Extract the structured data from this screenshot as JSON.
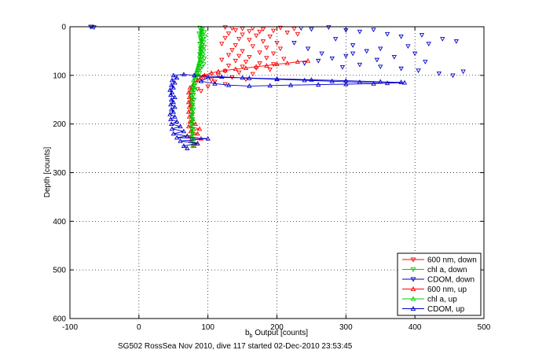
{
  "chart_data": {
    "type": "scatter",
    "xlabel": {
      "main": "b",
      "sub": "b",
      "rest": " Output [counts]"
    },
    "ylabel": "Depth [counts]",
    "footer": "SG502 RossSea Nov 2010, dive 117 started 02-Dec-2010 23:53:45",
    "xlim": [
      -100,
      500
    ],
    "ylim": [
      0,
      600
    ],
    "y_reversed": true,
    "grid": true,
    "legend_position": "bottom-right",
    "xticks": [
      "-100",
      "0",
      "100",
      "200",
      "300",
      "400",
      "500"
    ],
    "yticks": [
      "0",
      "100",
      "200",
      "300",
      "400",
      "500",
      "600"
    ],
    "series": [
      {
        "name": "600 nm, down",
        "color": "#ff0000",
        "marker": "triangle-down",
        "line": false,
        "points": [
          [
            125,
            1
          ],
          [
            135,
            3
          ],
          [
            150,
            4
          ],
          [
            165,
            3
          ],
          [
            180,
            5
          ],
          [
            205,
            2
          ],
          [
            225,
            4
          ],
          [
            140,
            7
          ],
          [
            160,
            9
          ],
          [
            175,
            10
          ],
          [
            195,
            8
          ],
          [
            215,
            12
          ],
          [
            130,
            14
          ],
          [
            150,
            16
          ],
          [
            170,
            18
          ],
          [
            190,
            20
          ],
          [
            230,
            15
          ],
          [
            125,
            23
          ],
          [
            145,
            25
          ],
          [
            160,
            27
          ],
          [
            180,
            30
          ],
          [
            200,
            33
          ],
          [
            120,
            35
          ],
          [
            140,
            38
          ],
          [
            165,
            40
          ],
          [
            185,
            43
          ],
          [
            205,
            45
          ],
          [
            135,
            48
          ],
          [
            150,
            50
          ],
          [
            175,
            53
          ],
          [
            195,
            55
          ],
          [
            130,
            58
          ],
          [
            145,
            60
          ],
          [
            160,
            62
          ],
          [
            185,
            64
          ],
          [
            210,
            66
          ],
          [
            120,
            68
          ],
          [
            140,
            70
          ],
          [
            155,
            72
          ],
          [
            175,
            75
          ],
          [
            195,
            77
          ],
          [
            130,
            80
          ],
          [
            150,
            82
          ],
          [
            170,
            85
          ],
          [
            190,
            88
          ],
          [
            125,
            91
          ],
          [
            145,
            94
          ],
          [
            165,
            97
          ],
          [
            115,
            100
          ],
          [
            135,
            104
          ],
          [
            155,
            108
          ],
          [
            110,
            113
          ],
          [
            125,
            118
          ],
          [
            100,
            123
          ],
          [
            85,
            128
          ],
          [
            90,
            132
          ],
          [
            95,
            102
          ],
          [
            105,
            110
          ]
        ]
      },
      {
        "name": "chl a, down",
        "color": "#00cc00",
        "marker": "triangle-down",
        "line": false,
        "points": [
          [
            88,
            2
          ],
          [
            92,
            5
          ],
          [
            90,
            8
          ],
          [
            95,
            11
          ],
          [
            87,
            14
          ],
          [
            91,
            17
          ],
          [
            96,
            20
          ],
          [
            89,
            23
          ],
          [
            93,
            26
          ],
          [
            90,
            29
          ],
          [
            94,
            32
          ],
          [
            88,
            35
          ],
          [
            92,
            38
          ],
          [
            95,
            41
          ],
          [
            89,
            44
          ],
          [
            91,
            47
          ],
          [
            94,
            50
          ],
          [
            90,
            53
          ],
          [
            88,
            56
          ],
          [
            93,
            59
          ],
          [
            91,
            62
          ],
          [
            95,
            65
          ],
          [
            89,
            68
          ],
          [
            92,
            71
          ],
          [
            90,
            74
          ],
          [
            94,
            77
          ],
          [
            87,
            80
          ],
          [
            91,
            83
          ],
          [
            89,
            86
          ],
          [
            86,
            90
          ],
          [
            88,
            95
          ],
          [
            84,
            100
          ],
          [
            86,
            105
          ],
          [
            82,
            110
          ],
          [
            83,
            115
          ],
          [
            80,
            122
          ],
          [
            81,
            130
          ],
          [
            79,
            140
          ],
          [
            80,
            150
          ],
          [
            78,
            160
          ],
          [
            79,
            170
          ],
          [
            77,
            180
          ],
          [
            78,
            190
          ],
          [
            76,
            200
          ],
          [
            77,
            210
          ],
          [
            78,
            220
          ],
          [
            76,
            230
          ],
          [
            79,
            240
          ],
          [
            78,
            245
          ]
        ]
      },
      {
        "name": "CDOM, down",
        "color": "#0000cc",
        "marker": "triangle-down",
        "line": false,
        "points": [
          [
            -70,
            0
          ],
          [
            -68,
            0
          ],
          [
            -65,
            1
          ],
          [
            235,
            3
          ],
          [
            250,
            5
          ],
          [
            275,
            1
          ],
          [
            300,
            7
          ],
          [
            320,
            10
          ],
          [
            340,
            6
          ],
          [
            360,
            15
          ],
          [
            380,
            20
          ],
          [
            410,
            17
          ],
          [
            440,
            25
          ],
          [
            460,
            30
          ],
          [
            420,
            35
          ],
          [
            390,
            40
          ],
          [
            350,
            45
          ],
          [
            330,
            50
          ],
          [
            310,
            55
          ],
          [
            300,
            60
          ],
          [
            280,
            65
          ],
          [
            260,
            70
          ],
          [
            240,
            75
          ],
          [
            320,
            78
          ],
          [
            350,
            82
          ],
          [
            380,
            86
          ],
          [
            405,
            90
          ],
          [
            470,
            92
          ],
          [
            435,
            96
          ],
          [
            455,
            100
          ],
          [
            225,
            33
          ],
          [
            265,
            55
          ],
          [
            295,
            83
          ],
          [
            345,
            68
          ],
          [
            400,
            55
          ],
          [
            370,
            62
          ],
          [
            415,
            72
          ],
          [
            285,
            25
          ],
          [
            310,
            38
          ],
          [
            245,
            45
          ]
        ]
      },
      {
        "name": "600 nm, up",
        "color": "#ff0000",
        "marker": "triangle-up",
        "line": true,
        "points": [
          [
            80,
            245
          ],
          [
            85,
            240
          ],
          [
            75,
            235
          ],
          [
            90,
            230
          ],
          [
            70,
            225
          ],
          [
            85,
            220
          ],
          [
            75,
            215
          ],
          [
            88,
            210
          ],
          [
            72,
            205
          ],
          [
            82,
            200
          ],
          [
            74,
            195
          ],
          [
            78,
            190
          ],
          [
            73,
            185
          ],
          [
            77,
            180
          ],
          [
            72,
            175
          ],
          [
            76,
            170
          ],
          [
            73,
            165
          ],
          [
            75,
            160
          ],
          [
            72,
            155
          ],
          [
            76,
            150
          ],
          [
            73,
            145
          ],
          [
            75,
            140
          ],
          [
            72,
            135
          ],
          [
            76,
            130
          ],
          [
            74,
            125
          ],
          [
            78,
            120
          ],
          [
            80,
            115
          ],
          [
            85,
            110
          ],
          [
            90,
            105
          ],
          [
            95,
            100
          ],
          [
            105,
            95
          ],
          [
            115,
            92
          ],
          [
            125,
            90
          ],
          [
            140,
            87
          ],
          [
            155,
            85
          ],
          [
            170,
            82
          ],
          [
            185,
            80
          ],
          [
            200,
            77
          ],
          [
            215,
            75
          ],
          [
            230,
            72
          ],
          [
            245,
            70
          ]
        ]
      },
      {
        "name": "chl a, up",
        "color": "#00cc00",
        "marker": "triangle-up",
        "line": true,
        "points": [
          [
            78,
            245
          ],
          [
            80,
            240
          ],
          [
            77,
            235
          ],
          [
            79,
            230
          ],
          [
            76,
            225
          ],
          [
            78,
            220
          ],
          [
            77,
            215
          ],
          [
            79,
            210
          ],
          [
            76,
            205
          ],
          [
            78,
            200
          ],
          [
            77,
            195
          ],
          [
            78,
            190
          ],
          [
            76,
            185
          ],
          [
            77,
            180
          ],
          [
            78,
            175
          ],
          [
            76,
            170
          ],
          [
            77,
            165
          ],
          [
            78,
            160
          ],
          [
            76,
            155
          ],
          [
            77,
            150
          ],
          [
            78,
            145
          ],
          [
            76,
            140
          ],
          [
            78,
            135
          ],
          [
            77,
            130
          ],
          [
            79,
            125
          ],
          [
            78,
            120
          ],
          [
            80,
            115
          ],
          [
            79,
            110
          ],
          [
            81,
            105
          ],
          [
            82,
            100
          ],
          [
            83,
            95
          ],
          [
            84,
            90
          ],
          [
            85,
            85
          ],
          [
            86,
            80
          ],
          [
            87,
            75
          ],
          [
            88,
            70
          ],
          [
            89,
            65
          ],
          [
            88,
            60
          ],
          [
            89,
            55
          ],
          [
            90,
            50
          ],
          [
            89,
            45
          ],
          [
            90,
            40
          ],
          [
            91,
            35
          ],
          [
            90,
            30
          ],
          [
            91,
            25
          ],
          [
            90,
            20
          ],
          [
            91,
            15
          ],
          [
            90,
            10
          ],
          [
            91,
            5
          ]
        ]
      },
      {
        "name": "CDOM, up",
        "color": "#0000cc",
        "marker": "triangle-up",
        "line": true,
        "points": [
          [
            70,
            250
          ],
          [
            65,
            245
          ],
          [
            85,
            240
          ],
          [
            60,
            235
          ],
          [
            100,
            230
          ],
          [
            55,
            228
          ],
          [
            70,
            225
          ],
          [
            50,
            220
          ],
          [
            65,
            215
          ],
          [
            48,
            210
          ],
          [
            60,
            205
          ],
          [
            47,
            200
          ],
          [
            55,
            195
          ],
          [
            46,
            190
          ],
          [
            52,
            185
          ],
          [
            45,
            180
          ],
          [
            50,
            175
          ],
          [
            47,
            170
          ],
          [
            52,
            165
          ],
          [
            46,
            160
          ],
          [
            50,
            155
          ],
          [
            47,
            150
          ],
          [
            52,
            145
          ],
          [
            46,
            140
          ],
          [
            48,
            135
          ],
          [
            45,
            130
          ],
          [
            50,
            125
          ],
          [
            47,
            120
          ],
          [
            52,
            115
          ],
          [
            48,
            110
          ],
          [
            55,
            105
          ],
          [
            50,
            100
          ],
          [
            65,
            98
          ],
          [
            80,
            100
          ],
          [
            120,
            103
          ],
          [
            160,
            106
          ],
          [
            200,
            108
          ],
          [
            240,
            110
          ],
          [
            280,
            112
          ],
          [
            320,
            114
          ],
          [
            360,
            116
          ],
          [
            385,
            115
          ],
          [
            350,
            113
          ],
          [
            300,
            111
          ],
          [
            250,
            109
          ],
          [
            200,
            107
          ],
          [
            150,
            105
          ],
          [
            100,
            104
          ],
          [
            90,
            112
          ],
          [
            110,
            117
          ],
          [
            130,
            120
          ],
          [
            160,
            122
          ],
          [
            190,
            121
          ],
          [
            220,
            120
          ],
          [
            260,
            119
          ],
          [
            300,
            118
          ],
          [
            340,
            117
          ],
          [
            380,
            114
          ]
        ]
      }
    ]
  }
}
